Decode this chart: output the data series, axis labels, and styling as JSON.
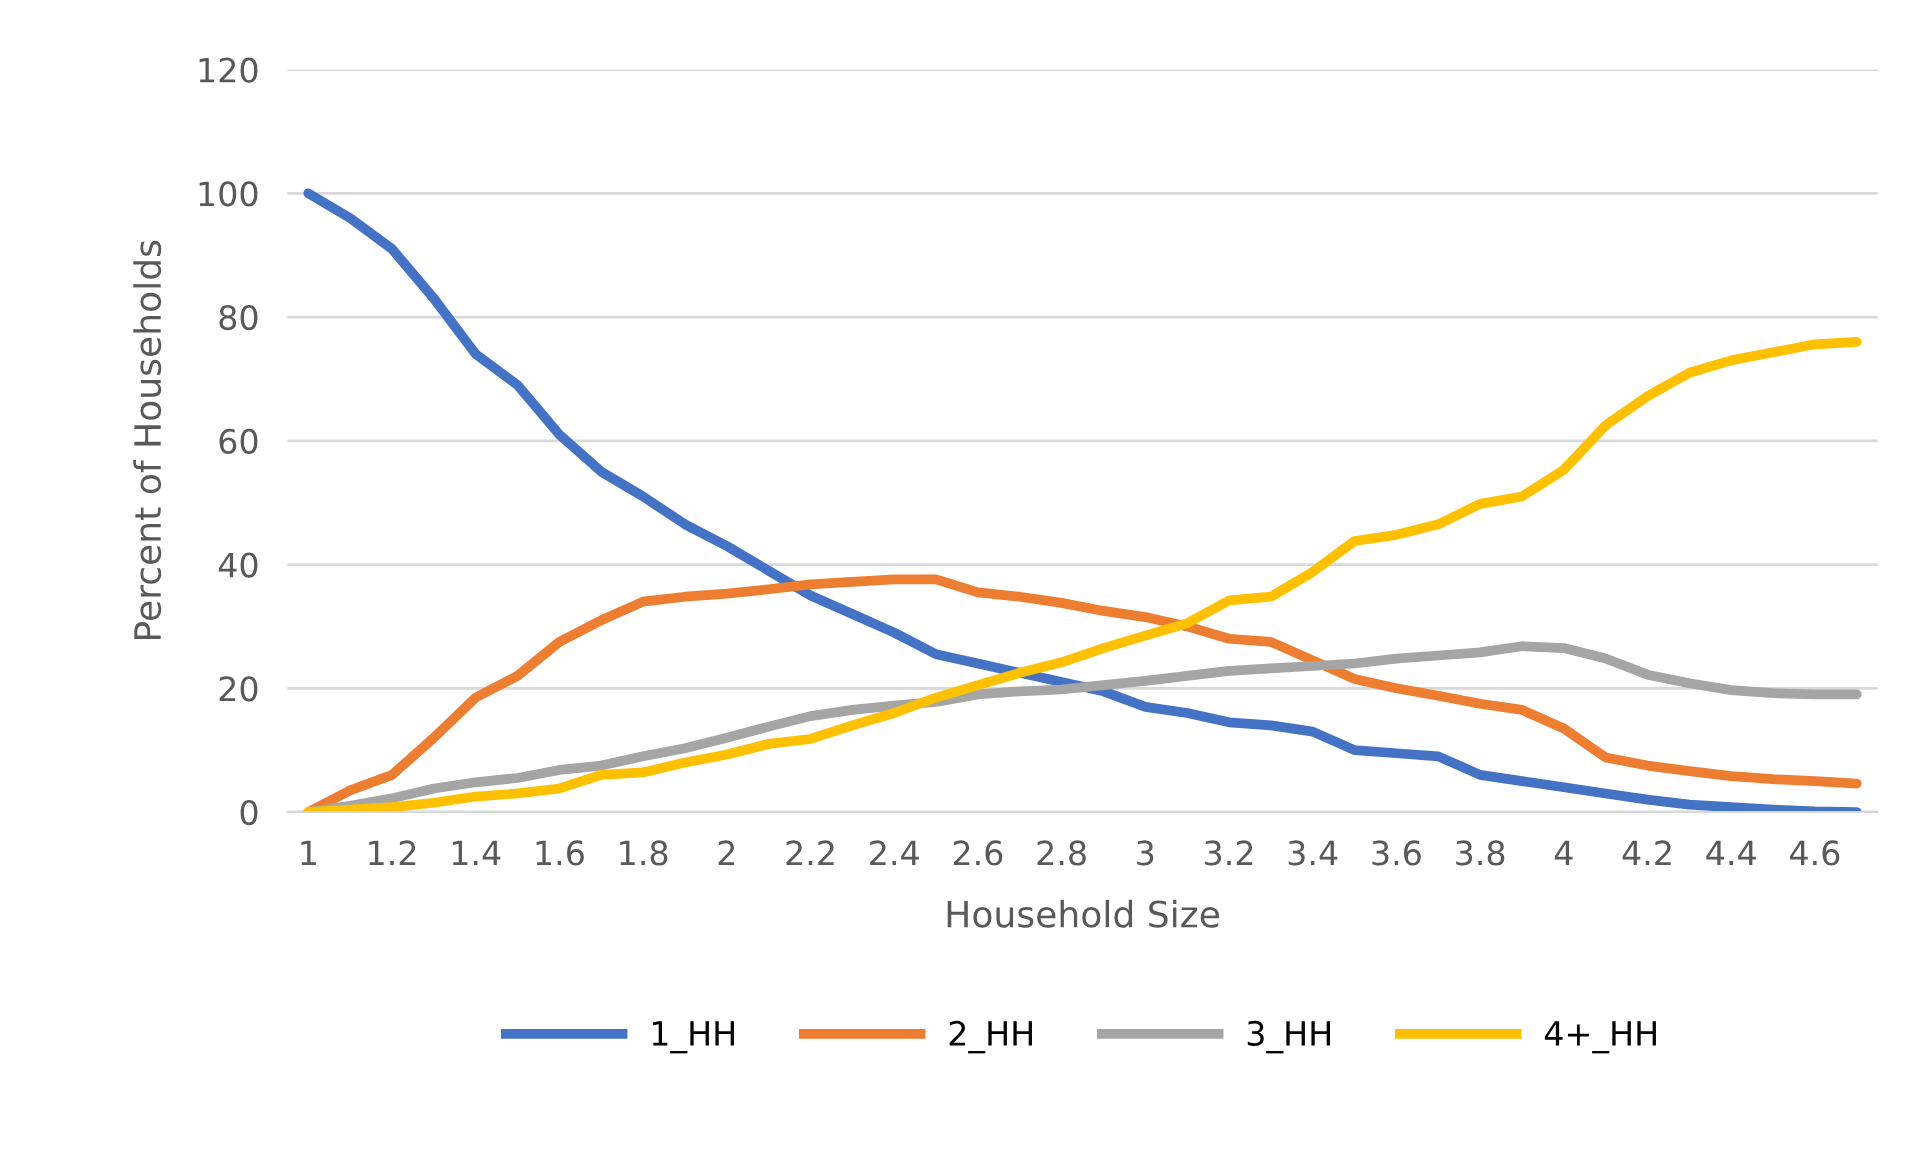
{
  "chart_data": {
    "type": "line",
    "xlabel": "Household Size",
    "ylabel": "Percent of Households",
    "categories": [
      "1",
      null,
      "1.2",
      null,
      "1.4",
      null,
      "1.6",
      null,
      "1.8",
      null,
      "2",
      null,
      "2.2",
      null,
      "2.4",
      null,
      "2.6",
      null,
      "2.8",
      null,
      "3",
      null,
      "3.2",
      null,
      "3.4",
      null,
      "3.6",
      null,
      "3.8",
      null,
      "4",
      null,
      "4.2",
      null,
      "4.4",
      null,
      "4.6",
      null
    ],
    "series": [
      {
        "name": "1_HH",
        "color": "#4472c4",
        "values": [
          100,
          96,
          91,
          83,
          74,
          69,
          61,
          55,
          51,
          46.5,
          43,
          39,
          35,
          32,
          29,
          25.5,
          24,
          22.5,
          21,
          19.5,
          17,
          16,
          14.5,
          14,
          13,
          10,
          9.5,
          9,
          6,
          5,
          4,
          3,
          2,
          1.2,
          0.8,
          0.4,
          0.1,
          0
        ]
      },
      {
        "name": "2_HH",
        "color": "#ed7d31",
        "values": [
          0,
          3.5,
          6,
          12,
          18.5,
          22,
          27.5,
          31,
          34,
          34.8,
          35.3,
          36,
          36.8,
          37.2,
          37.6,
          37.6,
          35.5,
          34.8,
          33.8,
          32.5,
          31.5,
          30,
          28,
          27.5,
          24.5,
          21.5,
          20,
          18.8,
          17.5,
          16.5,
          13.5,
          8.8,
          7.5,
          6.6,
          5.8,
          5.3,
          5,
          4.6
        ]
      },
      {
        "name": "3_HH",
        "color": "#a5a5a5",
        "values": [
          0,
          1,
          2.2,
          3.8,
          4.8,
          5.5,
          6.8,
          7.5,
          9,
          10.3,
          12,
          13.8,
          15.5,
          16.5,
          17.2,
          17.8,
          19,
          19.5,
          19.8,
          20.5,
          21.2,
          22,
          22.8,
          23.2,
          23.6,
          24,
          24.8,
          25.3,
          25.8,
          26.8,
          26.5,
          24.8,
          22.2,
          20.8,
          19.7,
          19.2,
          19,
          19
        ]
      },
      {
        "name": "4+_HH",
        "color": "#ffc000",
        "values": [
          0,
          0.4,
          0.8,
          1.5,
          2.5,
          3,
          3.8,
          6,
          6.4,
          8,
          9.3,
          11,
          11.8,
          14,
          16,
          18.5,
          20.5,
          22.5,
          24.2,
          26.5,
          28.5,
          30.5,
          34.2,
          34.8,
          38.8,
          43.8,
          44.8,
          46.5,
          49.8,
          51,
          55.3,
          62.5,
          67.2,
          71,
          73,
          74.3,
          75.6,
          76
        ]
      }
    ],
    "ylim": [
      0,
      120
    ],
    "yticks": [
      0,
      20,
      40,
      60,
      80,
      100,
      120
    ],
    "grid": "y",
    "legend": "bottom",
    "marker": "none",
    "line_style": "solid"
  }
}
